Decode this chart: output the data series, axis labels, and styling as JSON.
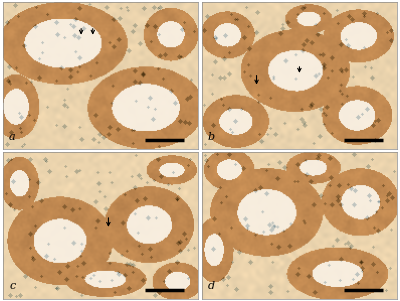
{
  "figsize": [
    4.0,
    3.01
  ],
  "dpi": 100,
  "background_color": "#ffffff",
  "panel_labels": [
    "a",
    "b",
    "c",
    "d"
  ],
  "label_color": "#000000",
  "label_fontsize": 8,
  "scale_bar_color": "#000000",
  "bg_color": [
    0.92,
    0.83,
    0.68
  ],
  "tissue_color": [
    0.8,
    0.62,
    0.4
  ],
  "tubule_outer_color": [
    0.78,
    0.58,
    0.35
  ],
  "tubule_inner_color": [
    0.88,
    0.72,
    0.52
  ],
  "lumen_color": [
    0.97,
    0.93,
    0.87
  ],
  "interstitial_color": [
    0.88,
    0.76,
    0.58
  ]
}
